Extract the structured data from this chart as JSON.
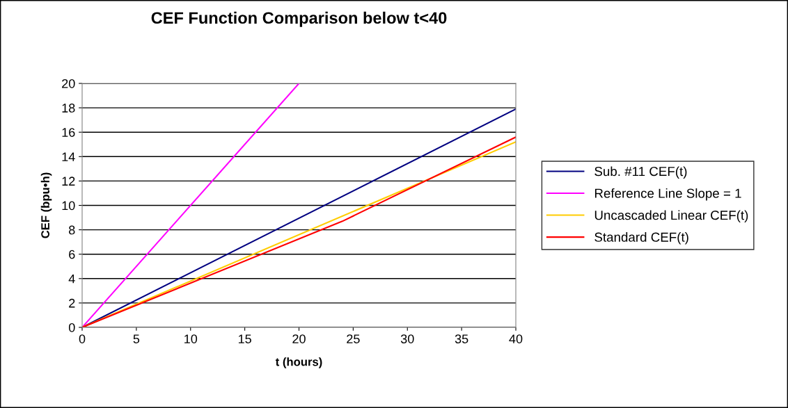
{
  "chart_data": {
    "type": "line",
    "title": "CEF Function Comparison below t<40",
    "xlabel": "t (hours)",
    "ylabel": "CEF (bpu•h)",
    "xlim": [
      0,
      40
    ],
    "xticks": [
      0,
      5,
      10,
      15,
      20,
      25,
      30,
      35,
      40
    ],
    "ylim": [
      0,
      20
    ],
    "yticks": [
      0,
      2,
      4,
      6,
      8,
      10,
      12,
      14,
      16,
      18,
      20
    ],
    "grid": "y",
    "legend": "right",
    "marker": "none",
    "line_style": "solid",
    "series": [
      {
        "name": "Sub. #11 CEF(t)",
        "color": "#000080",
        "x": [
          0,
          40
        ],
        "values": [
          0,
          17.9
        ]
      },
      {
        "name": "Reference Line Slope = 1",
        "color": "#ff00ff",
        "x": [
          0,
          20
        ],
        "values": [
          0,
          20
        ]
      },
      {
        "name": "Uncascaded Linear CEF(t)",
        "color": "#ffcc00",
        "x": [
          0,
          40
        ],
        "values": [
          0,
          15.2
        ]
      },
      {
        "name": "Standard CEF(t)",
        "color": "#ff0000",
        "x": [
          0,
          24,
          40
        ],
        "values": [
          0,
          8.7,
          15.6
        ]
      }
    ]
  }
}
